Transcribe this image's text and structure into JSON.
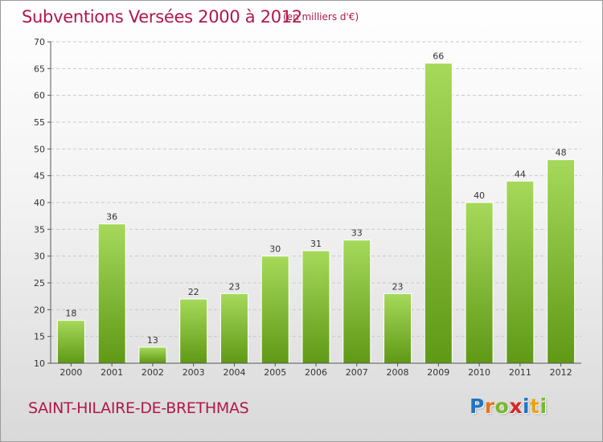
{
  "header": {
    "title": "Subventions Versées 2000 à 2012",
    "unit_note": "(en milliers d'€)"
  },
  "footer": {
    "commune": "SAINT-HILAIRE-DE-BRETHMAS",
    "logo_letters": [
      "P",
      "r",
      "o",
      "x",
      "i",
      "t",
      "i"
    ],
    "logo_colors": [
      "#1f74c4",
      "#e8731a",
      "#78b82a",
      "#d6262a",
      "#1f74c4",
      "#e8a416",
      "#78b82a"
    ]
  },
  "colors": {
    "bar_top": "#a6d95a",
    "bar_bottom": "#5f9916",
    "bar_edge": "#ffffff",
    "axis": "#555555",
    "grid": "#c8c8c8",
    "text": "#333333",
    "accent": "#b0174a"
  },
  "chart_data": {
    "type": "bar",
    "categories": [
      "2000",
      "2001",
      "2002",
      "2003",
      "2004",
      "2005",
      "2006",
      "2007",
      "2008",
      "2009",
      "2010",
      "2011",
      "2012"
    ],
    "values": [
      18,
      36,
      13,
      22,
      23,
      30,
      31,
      33,
      23,
      66,
      40,
      44,
      48
    ],
    "title": "Subventions Versées 2000 à 2012",
    "subtitle": "(en milliers d'€)",
    "xlabel": "",
    "ylabel": "",
    "ylim": [
      10,
      70
    ],
    "yticks": [
      10,
      15,
      20,
      25,
      30,
      35,
      40,
      45,
      50,
      55,
      60,
      65,
      70
    ],
    "grid": "dashed horizontal",
    "data_labels": true
  }
}
